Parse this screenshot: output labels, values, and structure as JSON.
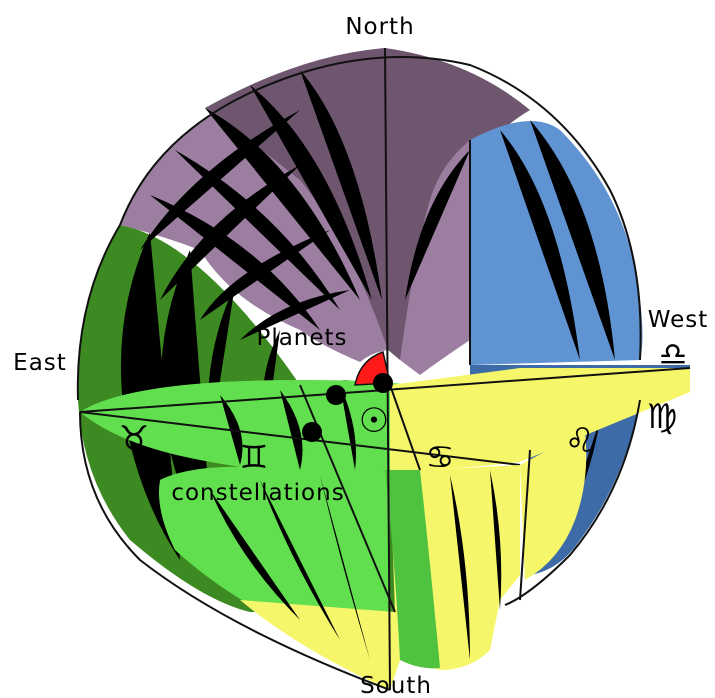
{
  "labels": {
    "north": "North",
    "south": "South",
    "east": "East",
    "west": "West",
    "planets": "Planets",
    "constellations": "constellations"
  },
  "zodiac": {
    "taurus": "♉",
    "gemini": "♊",
    "cancer": "♋",
    "leo": "♌",
    "virgo": "♍",
    "libra": "♎"
  },
  "sun_symbol": "☉",
  "colors": {
    "north_sector": "#9b7ea0",
    "north_sector_dark": "#6e566f",
    "west_sector": "#5f93d2",
    "west_sector_dark": "#3d6ba8",
    "east_sector": "#3e8a22",
    "ecliptic_plane": "#62df4f",
    "south_sector": "#f6f66a",
    "planet_marker": "#ff1a1a",
    "planet_dot": "#000000"
  }
}
